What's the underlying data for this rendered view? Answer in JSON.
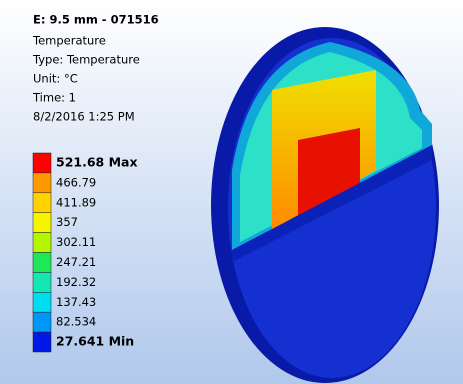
{
  "header": {
    "title": "E: 9.5 mm - 071516",
    "lines": [
      "Temperature",
      "Type: Temperature",
      "Unit: °C",
      "Time: 1",
      "8/2/2016 1:25 PM"
    ]
  },
  "legend": {
    "items": [
      {
        "label": "521.68 Max",
        "color": "#ff0000"
      },
      {
        "label": "466.79",
        "color": "#ff9900"
      },
      {
        "label": "411.89",
        "color": "#ffd200"
      },
      {
        "label": "357",
        "color": "#f5f500"
      },
      {
        "label": "302.11",
        "color": "#b4f500"
      },
      {
        "label": "247.21",
        "color": "#1ee85a"
      },
      {
        "label": "192.32",
        "color": "#14e6b4"
      },
      {
        "label": "137.43",
        "color": "#00dcf0"
      },
      {
        "label": "82.534",
        "color": "#0096f5"
      },
      {
        "label": "27.641 Min",
        "color": "#0019e6"
      }
    ]
  }
}
